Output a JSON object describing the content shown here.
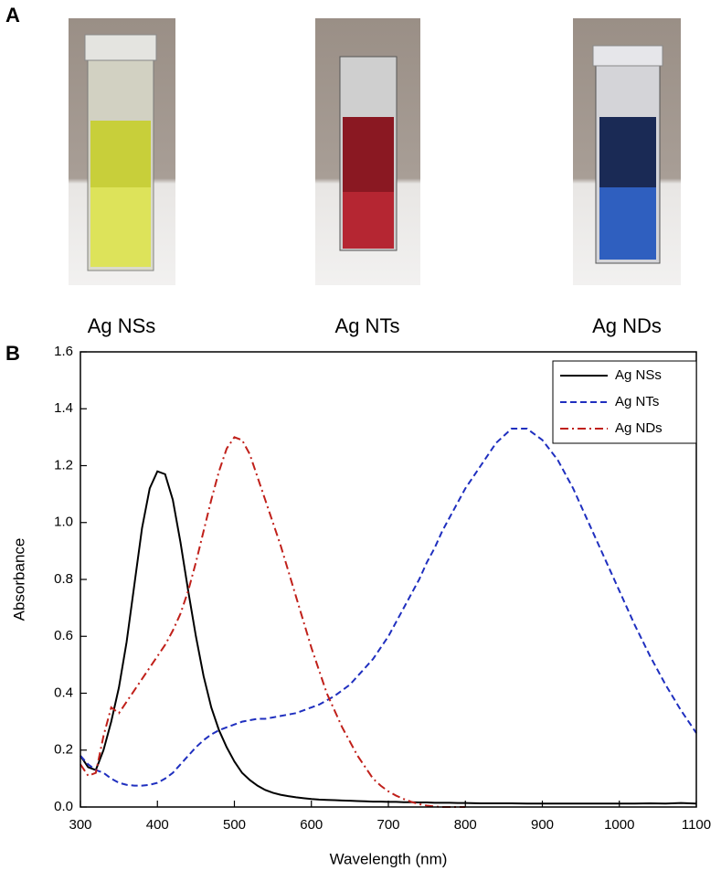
{
  "panel_a": {
    "label": "A",
    "captions": [
      "Ag NSs",
      "Ag NTs",
      "Ag NDs"
    ]
  },
  "chart_data": {
    "type": "line",
    "panel_label": "B",
    "x_label": "Wavelength (nm)",
    "y_label": "Absorbance",
    "xlim": [
      300,
      1100
    ],
    "ylim": [
      0,
      1.6
    ],
    "xticks": [
      300,
      400,
      500,
      600,
      700,
      800,
      900,
      1000,
      1100
    ],
    "yticks": [
      {
        "value": 0,
        "label": "0.0"
      },
      0.2,
      0.4,
      0.6,
      0.8,
      {
        "value": 1,
        "label": "1.0"
      },
      1.2,
      1.4,
      1.6
    ],
    "legend": "upper right",
    "x": [
      300,
      310,
      320,
      330,
      340,
      350,
      360,
      370,
      380,
      390,
      400,
      410,
      420,
      430,
      440,
      450,
      460,
      470,
      480,
      490,
      500,
      510,
      520,
      530,
      540,
      550,
      560,
      570,
      580,
      590,
      600,
      610,
      620,
      630,
      640,
      650,
      660,
      670,
      680,
      690,
      700,
      710,
      720,
      730,
      740,
      750,
      760,
      770,
      780,
      790,
      800,
      820,
      840,
      860,
      880,
      900,
      920,
      940,
      960,
      980,
      1000,
      1020,
      1040,
      1060,
      1080,
      1100
    ],
    "series": [
      {
        "name": "Ag NSs",
        "color": "#000000",
        "line_style": "solid",
        "values": [
          0.18,
          0.14,
          0.13,
          0.2,
          0.3,
          0.42,
          0.58,
          0.78,
          0.98,
          1.12,
          1.18,
          1.17,
          1.08,
          0.93,
          0.76,
          0.6,
          0.46,
          0.35,
          0.27,
          0.21,
          0.16,
          0.12,
          0.095,
          0.075,
          0.06,
          0.05,
          0.043,
          0.038,
          0.034,
          0.031,
          0.028,
          0.026,
          0.025,
          0.024,
          0.023,
          0.022,
          0.021,
          0.02,
          0.019,
          0.019,
          0.018,
          0.018,
          0.017,
          0.017,
          0.016,
          0.016,
          0.015,
          0.015,
          0.015,
          0.014,
          0.014,
          0.013,
          0.013,
          0.013,
          0.012,
          0.012,
          0.012,
          0.012,
          0.012,
          0.012,
          0.012,
          0.012,
          0.013,
          0.012,
          0.014,
          0.012
        ]
      },
      {
        "name": "Ag NTs",
        "color": "#1f2fbf",
        "line_style": "dashed",
        "values": [
          0.18,
          0.15,
          0.13,
          0.12,
          0.1,
          0.085,
          0.078,
          0.075,
          0.075,
          0.078,
          0.085,
          0.1,
          0.12,
          0.15,
          0.18,
          0.21,
          0.235,
          0.255,
          0.27,
          0.28,
          0.29,
          0.3,
          0.305,
          0.31,
          0.31,
          0.315,
          0.32,
          0.325,
          0.33,
          0.34,
          0.35,
          0.36,
          0.375,
          0.39,
          0.41,
          0.43,
          0.46,
          0.49,
          0.52,
          0.56,
          0.6,
          0.65,
          0.7,
          0.75,
          0.8,
          0.86,
          0.91,
          0.97,
          1.02,
          1.07,
          1.12,
          1.2,
          1.28,
          1.33,
          1.33,
          1.29,
          1.22,
          1.12,
          1.0,
          0.88,
          0.76,
          0.64,
          0.53,
          0.43,
          0.34,
          0.26
        ]
      },
      {
        "name": "Ag NDs",
        "color": "#c0201a",
        "line_style": "dashdot",
        "values": [
          0.15,
          0.11,
          0.12,
          0.25,
          0.35,
          0.33,
          0.37,
          0.41,
          0.45,
          0.49,
          0.53,
          0.57,
          0.62,
          0.68,
          0.76,
          0.86,
          0.97,
          1.08,
          1.18,
          1.26,
          1.3,
          1.29,
          1.24,
          1.16,
          1.08,
          1.0,
          0.92,
          0.83,
          0.74,
          0.65,
          0.56,
          0.48,
          0.4,
          0.34,
          0.28,
          0.23,
          0.18,
          0.14,
          0.1,
          0.075,
          0.055,
          0.04,
          0.028,
          0.018,
          0.01,
          0.005,
          0.002,
          0,
          0,
          0,
          0,
          null,
          null,
          null,
          null,
          null,
          null,
          null,
          null,
          null,
          null,
          null,
          null,
          null,
          null,
          null
        ]
      }
    ]
  }
}
